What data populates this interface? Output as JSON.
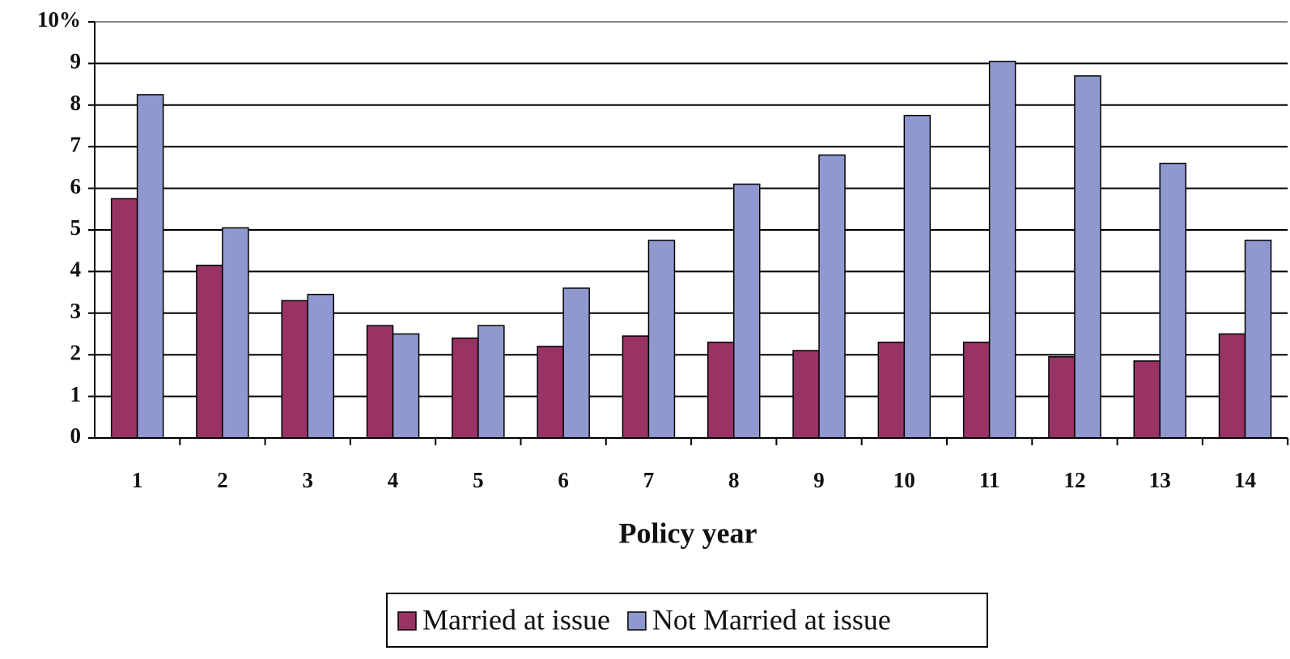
{
  "chart_data": {
    "type": "bar",
    "x_label": "Policy year",
    "categories": [
      "1",
      "2",
      "3",
      "4",
      "5",
      "6",
      "7",
      "8",
      "9",
      "10",
      "11",
      "12",
      "13",
      "14"
    ],
    "series": [
      {
        "name": "Married at issue",
        "color": "#993366",
        "values": [
          5.75,
          4.15,
          3.3,
          2.7,
          2.4,
          2.2,
          2.45,
          2.3,
          2.1,
          2.3,
          2.3,
          1.95,
          1.85,
          2.5
        ]
      },
      {
        "name": "Not Married at issue",
        "color": "#9099cf",
        "values": [
          8.25,
          5.05,
          3.45,
          2.5,
          2.7,
          3.6,
          4.75,
          6.1,
          6.8,
          7.75,
          9.05,
          8.7,
          6.6,
          4.75
        ]
      }
    ],
    "ylim": [
      0,
      10
    ],
    "yticks": [
      0,
      1,
      2,
      3,
      4,
      5,
      6,
      7,
      8,
      9,
      {
        "value": 10,
        "label": "10%"
      }
    ],
    "grid": true
  }
}
